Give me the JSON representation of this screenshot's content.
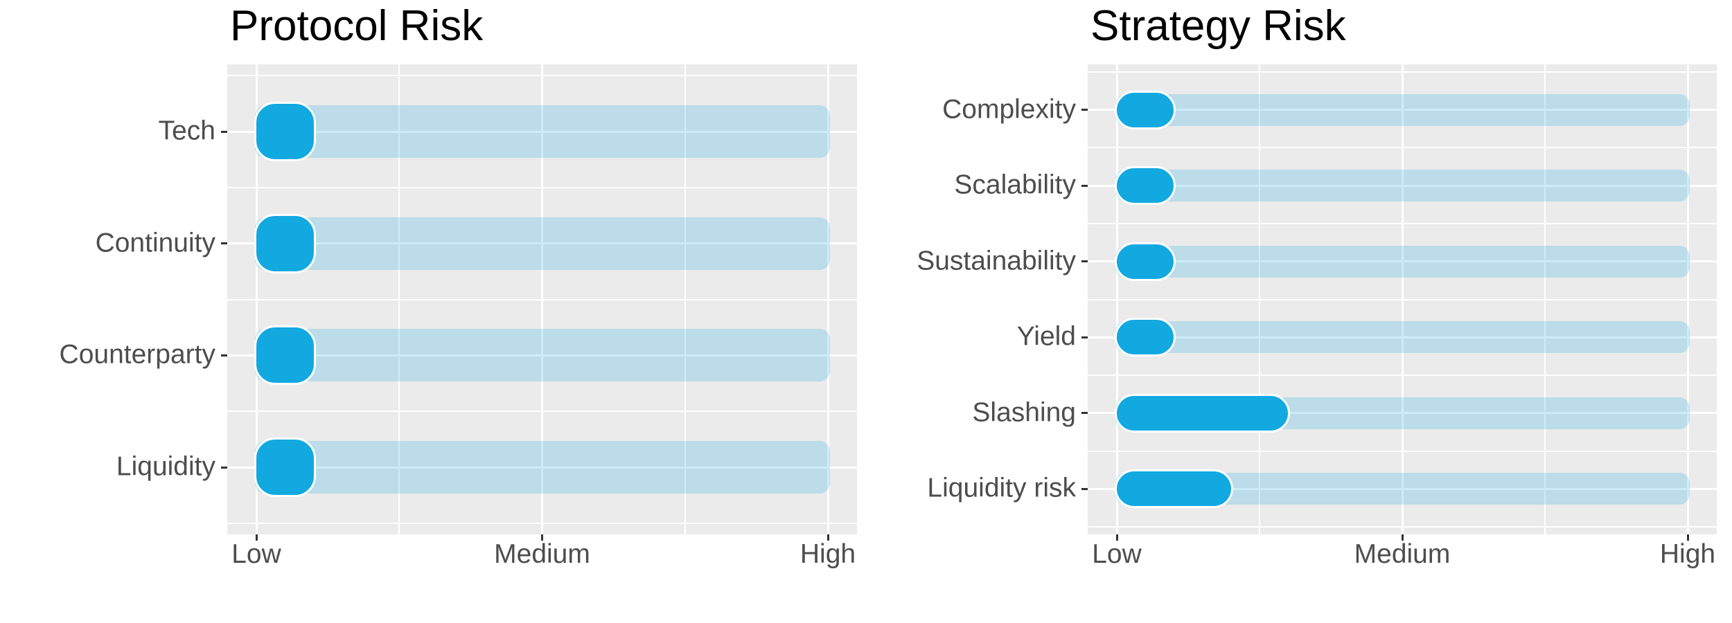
{
  "figure": {
    "background": "#FFFFFF"
  },
  "style": {
    "panel_background": "#EBEBEB",
    "gridline": "#FFFFFF",
    "track_fill": "rgba(18,169,225,0.22)",
    "bar_fill": "#12A9E1",
    "bar_outline": "#FFFFFF",
    "axis_text": "#4D4D4D",
    "tick_mark": "#333333",
    "title_color": "#000000"
  },
  "chart_data": [
    {
      "type": "bar",
      "orientation": "horizontal",
      "title": "Protocol Risk",
      "categories": [
        "Tech",
        "Continuity",
        "Counterparty",
        "Liquidity"
      ],
      "values": [
        0.2,
        0.2,
        0.2,
        0.2
      ],
      "track_range": [
        0,
        2
      ],
      "xlim": [
        0,
        2
      ],
      "x_ticks": [
        {
          "label": "Low",
          "value": 0
        },
        {
          "label": "Medium",
          "value": 1
        },
        {
          "label": "High",
          "value": 2
        }
      ],
      "xlabel": "",
      "ylabel": "",
      "grid": "on",
      "legend": "none"
    },
    {
      "type": "bar",
      "orientation": "horizontal",
      "title": "Strategy Risk",
      "categories": [
        "Complexity",
        "Scalability",
        "Sustainability",
        "Yield",
        "Slashing",
        "Liquidity risk"
      ],
      "values": [
        0.2,
        0.2,
        0.2,
        0.2,
        0.6,
        0.4
      ],
      "track_range": [
        0,
        2
      ],
      "xlim": [
        0,
        2
      ],
      "x_ticks": [
        {
          "label": "Low",
          "value": 0
        },
        {
          "label": "Medium",
          "value": 1
        },
        {
          "label": "High",
          "value": 2
        }
      ],
      "xlabel": "",
      "ylabel": "",
      "grid": "on",
      "legend": "none"
    }
  ]
}
